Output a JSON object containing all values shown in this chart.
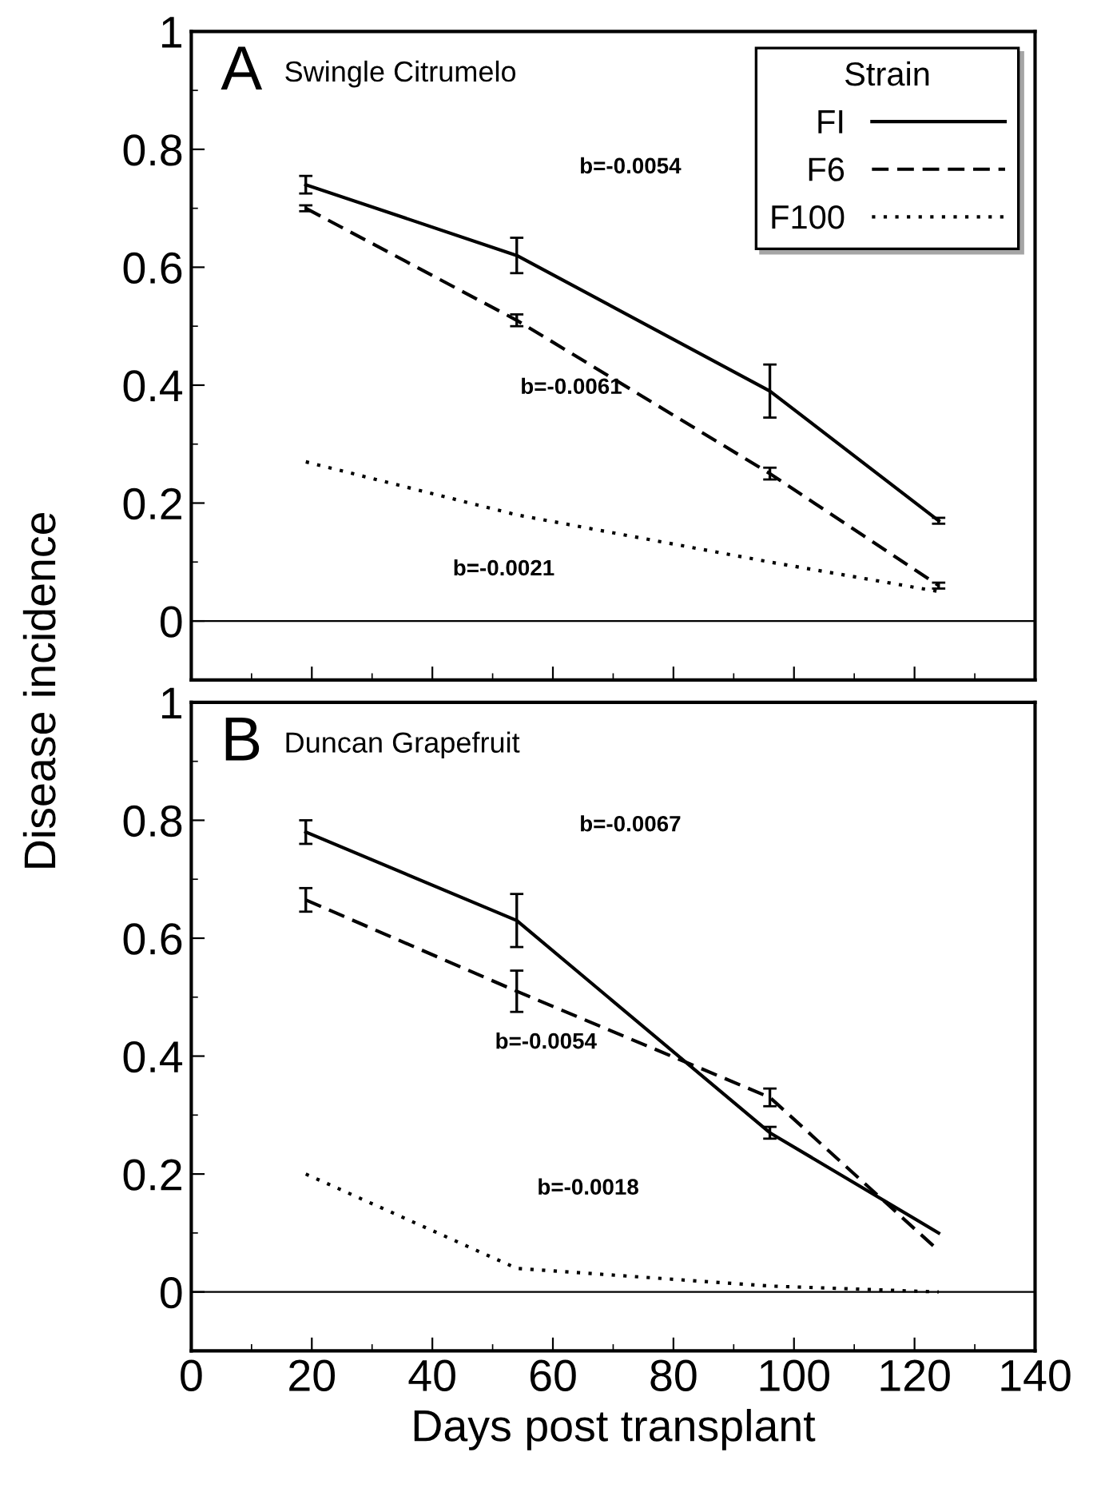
{
  "chart_data": [
    {
      "type": "line",
      "title": "A",
      "subtitle": "Swingle Citrumelo",
      "ylabel": "Disease incidence",
      "legend_title": "Strain",
      "legend": "top right",
      "tick_labels": "y",
      "x": [
        19,
        54,
        96,
        124
      ],
      "xlim": [
        0,
        140
      ],
      "xticks": [
        0,
        20,
        40,
        60,
        80,
        100,
        120,
        140
      ],
      "ylim": [
        -0.1,
        1
      ],
      "yticks": [
        0,
        0.2,
        0.4,
        0.6,
        0.8,
        1
      ],
      "ref_lines": [
        {
          "axis": "y",
          "value": 0,
          "color": "#000000",
          "line_style": "solid"
        }
      ],
      "annotations": [
        "b=-0.0054",
        "b=-0.0061",
        "b=-0.0021"
      ],
      "series": [
        {
          "name": "FI",
          "color": "#000000",
          "line_style": "solid",
          "values": [
            0.74,
            0.62,
            0.39,
            0.17
          ],
          "errors": [
            0.015,
            0.03,
            0.045,
            0.005
          ]
        },
        {
          "name": "F6",
          "color": "#000000",
          "line_style": "dashed",
          "values": [
            0.7,
            0.51,
            0.25,
            0.06
          ],
          "errors": [
            0.005,
            0.01,
            0.01,
            0.005
          ]
        },
        {
          "name": "F100",
          "color": "#000000",
          "line_style": "dotted",
          "values": [
            0.27,
            0.18,
            0.1,
            0.05
          ],
          "errors": [
            null,
            null,
            null,
            null
          ]
        }
      ]
    },
    {
      "type": "line",
      "title": "B",
      "subtitle": "Duncan Grapefruit",
      "xlabel": "Days post transplant",
      "legend": false,
      "x": [
        19,
        54,
        96,
        124
      ],
      "xlim": [
        0,
        140
      ],
      "xticks": [
        0,
        20,
        40,
        60,
        80,
        100,
        120,
        140
      ],
      "ylim": [
        -0.1,
        1
      ],
      "yticks": [
        0,
        0.2,
        0.4,
        0.6,
        0.8,
        1
      ],
      "ref_lines": [
        {
          "axis": "y",
          "value": 0,
          "color": "#000000",
          "line_style": "solid"
        }
      ],
      "annotations": [
        "b=-0.0067",
        "b=-0.0054",
        "b=-0.0018"
      ],
      "series": [
        {
          "color": "#000000",
          "line_style": "solid",
          "values": [
            0.78,
            0.63,
            0.27,
            0.1
          ],
          "errors": [
            0.02,
            0.045,
            0.01,
            null
          ]
        },
        {
          "color": "#000000",
          "line_style": "dashed",
          "values": [
            0.665,
            0.51,
            0.33,
            0.07
          ],
          "errors": [
            0.02,
            0.035,
            0.015,
            null
          ]
        },
        {
          "color": "#000000",
          "line_style": "dotted",
          "values": [
            0.2,
            0.04,
            0.01,
            0.0
          ],
          "errors": [
            null,
            null,
            null,
            null
          ]
        }
      ]
    }
  ]
}
